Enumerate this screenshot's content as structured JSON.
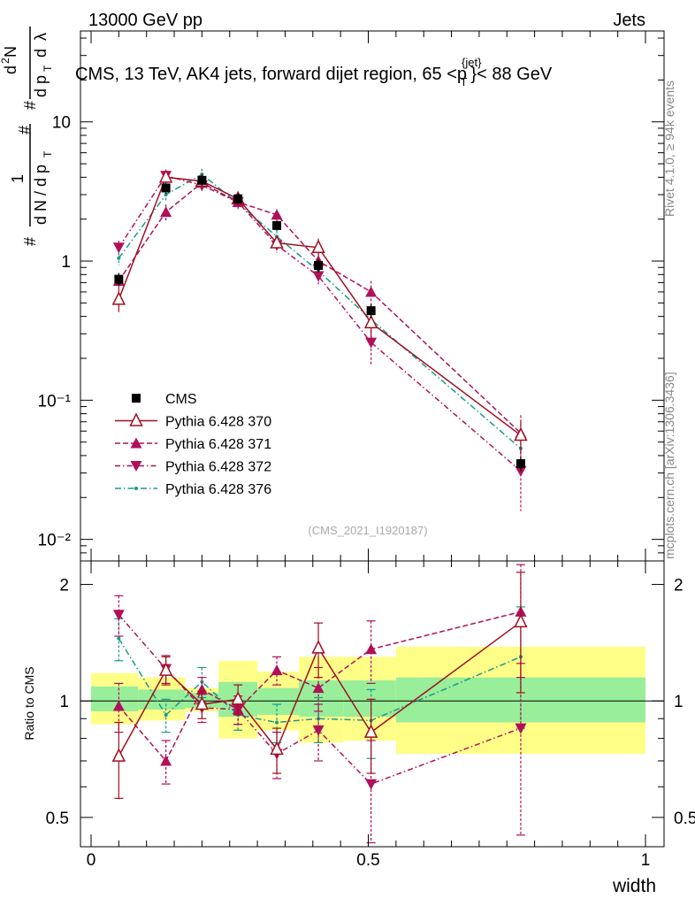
{
  "header": {
    "left": "13000 GeV pp",
    "right": "Jets",
    "title": "CMS, 13 TeV, AK4 jets, forward dijet region, 65 <p_T^{jet}< 88 GeV",
    "analysis_id": "(CMS_2021_I1920187)"
  },
  "side_labels": {
    "rivet": "Rivet 4.1.0, ≥ 94k events",
    "mcplots": "mcplots.cern.ch [arXiv:1306.3436]"
  },
  "y_label_main": "1/N dN/dp_T d²N/dp_T dλ",
  "chart_data": [
    {
      "type": "line",
      "panel": "main",
      "yscale": "log",
      "xlim": [
        -0.02,
        1.0
      ],
      "ylim": [
        0.007,
        45
      ],
      "xlabel": "width",
      "ylabel": "(1/N)(dN/dpT) d²N/(dpT dλ)",
      "y_tick_labels": [
        "10⁻²",
        "10⁻¹",
        "1",
        "10"
      ],
      "x": [
        0.05,
        0.135,
        0.2,
        0.265,
        0.335,
        0.41,
        0.505,
        0.775
      ],
      "series": [
        {
          "name": "CMS",
          "color": "#000000",
          "marker": "square",
          "values": [
            0.74,
            3.35,
            3.8,
            2.8,
            1.8,
            0.93,
            0.44,
            0.035
          ],
          "err": [
            0.08,
            0.3,
            0.3,
            0.25,
            0.15,
            0.1,
            0.05,
            0.004
          ]
        },
        {
          "name": "Pythia 6.428 370",
          "color": "#a01020",
          "marker": "triangle-open",
          "dash": "",
          "values": [
            0.53,
            4.0,
            3.75,
            2.8,
            1.35,
            1.25,
            0.36,
            0.056
          ],
          "err": [
            0.1,
            0.3,
            0.3,
            0.25,
            0.15,
            0.2,
            0.08,
            0.015
          ]
        },
        {
          "name": "Pythia 6.428 371",
          "color": "#b0105a",
          "marker": "triangle",
          "dash": "6,3",
          "values": [
            0.72,
            2.25,
            3.65,
            2.65,
            2.15,
            1.0,
            0.6,
            0.058
          ],
          "err": [
            0.1,
            0.3,
            0.3,
            0.25,
            0.2,
            0.15,
            0.12,
            0.02
          ]
        },
        {
          "name": "Pythia 6.428 372",
          "color": "#b0105a",
          "marker": "triangle-down",
          "dash": "6,3,1.5,3",
          "values": [
            1.25,
            4.1,
            3.5,
            2.65,
            1.3,
            0.78,
            0.26,
            0.031
          ],
          "err": [
            0.15,
            0.3,
            0.3,
            0.25,
            0.15,
            0.1,
            0.08,
            0.015
          ]
        },
        {
          "name": "Pythia 6.428 376",
          "color": "#1a9a8a",
          "marker": "dot",
          "dash": "7,3,1.5,3",
          "values": [
            1.05,
            3.0,
            4.2,
            2.6,
            1.5,
            0.85,
            0.38,
            0.045
          ],
          "err": [
            0.12,
            0.3,
            0.4,
            0.25,
            0.15,
            0.12,
            0.08,
            0.012
          ]
        }
      ]
    },
    {
      "type": "line",
      "panel": "ratio",
      "xlim": [
        -0.02,
        1.0
      ],
      "ylim": [
        0.42,
        2.3
      ],
      "ylabel": "Ratio to CMS",
      "y_ticks": [
        0.5,
        1,
        2
      ],
      "y_tick_labels": [
        "0.5",
        "1",
        "2"
      ],
      "x_ticks": [
        0,
        0.5,
        1
      ],
      "x_tick_labels": [
        "0",
        "0.5",
        "1"
      ],
      "xlabel": "width",
      "bands": {
        "edges": [
          0,
          0.085,
          0.17,
          0.23,
          0.3,
          0.375,
          0.455,
          0.55,
          1.0
        ],
        "stat_lo": [
          0.94,
          0.95,
          0.96,
          0.91,
          0.92,
          0.91,
          0.91,
          0.88
        ],
        "stat_hi": [
          1.09,
          1.07,
          1.05,
          1.12,
          1.08,
          1.13,
          1.13,
          1.15
        ],
        "total_lo": [
          0.87,
          0.89,
          0.94,
          0.8,
          0.84,
          0.78,
          0.79,
          0.73
        ],
        "total_hi": [
          1.18,
          1.15,
          1.08,
          1.27,
          1.19,
          1.3,
          1.3,
          1.38
        ],
        "stat_color": "#99ee99",
        "total_color": "#ffff88"
      },
      "x": [
        0.05,
        0.135,
        0.2,
        0.265,
        0.335,
        0.41,
        0.505,
        0.775
      ],
      "series": [
        {
          "name": "Pythia 6.428 370",
          "values": [
            0.72,
            1.2,
            0.98,
            1.01,
            0.75,
            1.37,
            0.83,
            1.6
          ],
          "err": [
            0.16,
            0.1,
            0.08,
            0.09,
            0.1,
            0.22,
            0.18,
            0.55
          ]
        },
        {
          "name": "Pythia 6.428 371",
          "values": [
            0.97,
            0.7,
            1.07,
            0.95,
            1.2,
            1.08,
            1.36,
            1.7
          ],
          "err": [
            0.14,
            0.09,
            0.08,
            0.08,
            0.1,
            0.14,
            0.25,
            0.55
          ]
        },
        {
          "name": "Pythia 6.428 372",
          "values": [
            1.67,
            1.21,
            0.96,
            0.95,
            0.73,
            0.84,
            0.61,
            0.85
          ],
          "err": [
            0.2,
            0.1,
            0.08,
            0.08,
            0.1,
            0.14,
            0.18,
            0.4
          ]
        },
        {
          "name": "Pythia 6.428 376",
          "values": [
            1.45,
            0.92,
            1.12,
            0.92,
            0.88,
            0.9,
            0.89,
            1.3
          ],
          "err": [
            0.18,
            0.09,
            0.1,
            0.08,
            0.1,
            0.12,
            0.18,
            0.45
          ]
        }
      ]
    }
  ]
}
